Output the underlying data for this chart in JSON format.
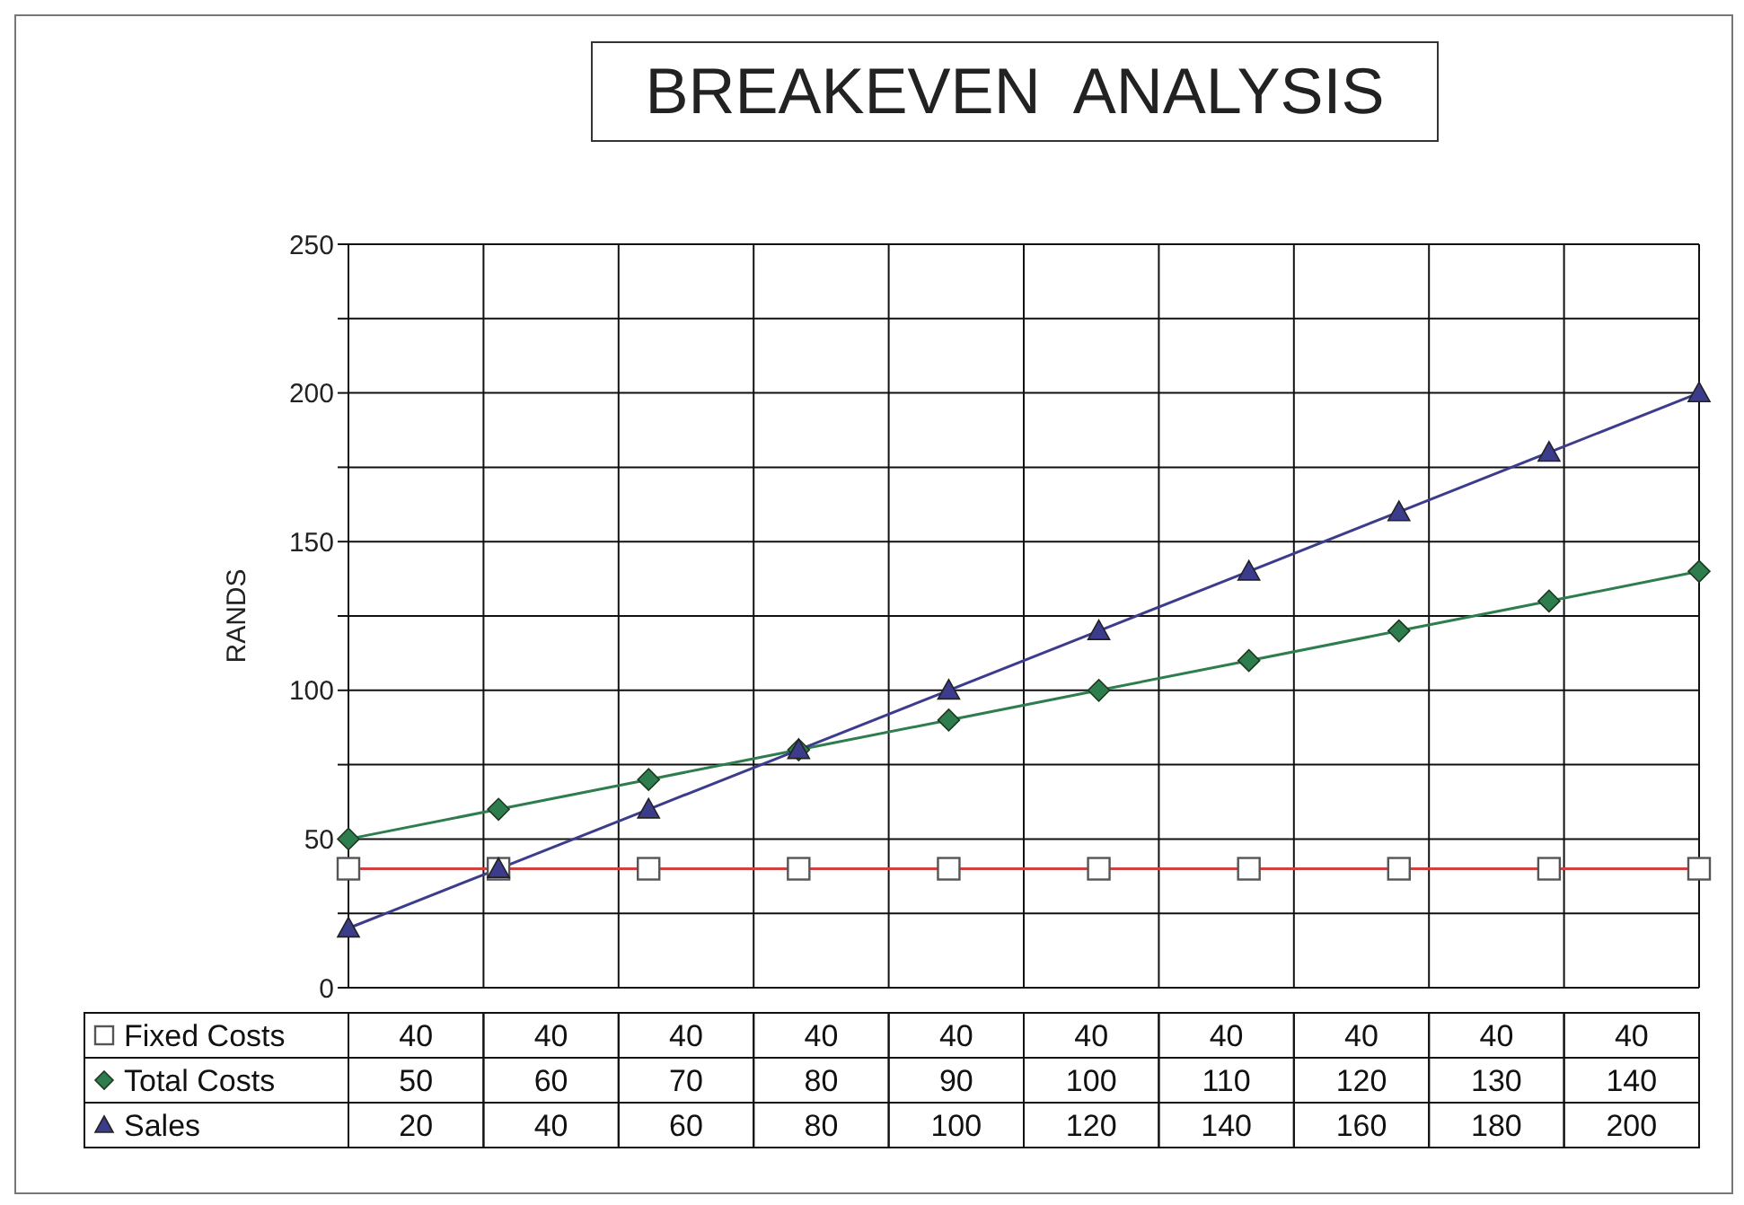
{
  "chart_data": {
    "type": "line",
    "title": "BREAKEVEN  ANALYSIS",
    "ylabel": "RANDS",
    "categories": [
      null,
      null,
      null,
      null,
      null,
      null,
      null,
      null,
      null,
      null
    ],
    "series": [
      {
        "name": "Fixed Costs",
        "color": "#d04040",
        "marker": "square",
        "values": [
          40,
          40,
          40,
          40,
          40,
          40,
          40,
          40,
          40,
          40
        ]
      },
      {
        "name": "Total Costs",
        "color": "#2e7d4f",
        "marker": "diamond",
        "values": [
          50,
          60,
          70,
          80,
          90,
          100,
          110,
          120,
          130,
          140
        ]
      },
      {
        "name": "Sales",
        "color": "#3c3c8c",
        "marker": "triangle",
        "values": [
          20,
          40,
          60,
          80,
          100,
          120,
          140,
          160,
          180,
          200
        ]
      }
    ],
    "ylim": [
      0,
      250
    ],
    "yticks": [
      0,
      {
        "value": 25,
        "label": null
      },
      50,
      {
        "value": 75,
        "label": null
      },
      100,
      {
        "value": 125,
        "label": null
      },
      150,
      {
        "value": 175,
        "label": null
      },
      200,
      {
        "value": 225,
        "label": null
      },
      250
    ],
    "grid": true,
    "legend": "bottom",
    "data_labels": true
  }
}
